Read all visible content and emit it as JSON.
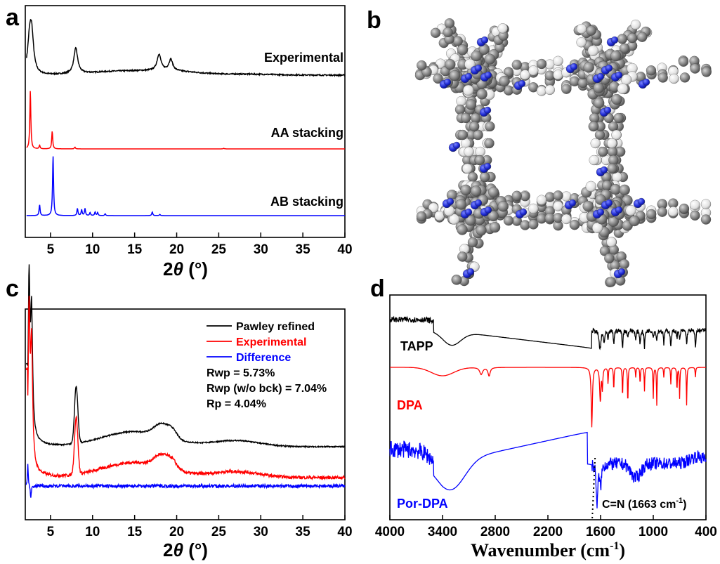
{
  "panels": {
    "a": {
      "label": "a"
    },
    "b": {
      "label": "b"
    },
    "c": {
      "label": "c"
    },
    "d": {
      "label": "d"
    }
  },
  "colors": {
    "black": "#000000",
    "red": "#ff0000",
    "blue": "#0000ff",
    "carbon": "#7a7a7a",
    "hydrogen": "#e6e6e6",
    "nitrogen": "#1f2bd6"
  },
  "chart_data": [
    {
      "panel": "a",
      "type": "line",
      "xlabel_prefix": "2",
      "xlabel_symbol": "θ",
      "xlabel_suffix": " (°)",
      "xlim": [
        2,
        40
      ],
      "xticks": [
        5,
        10,
        15,
        20,
        25,
        30,
        35,
        40
      ],
      "series": [
        {
          "name": "Experimental",
          "color": "#000000",
          "peaks": [
            [
              2.5,
              0.55
            ],
            [
              2.75,
              0.75
            ],
            [
              8.0,
              0.5
            ],
            [
              17.9,
              0.32
            ],
            [
              19.3,
              0.22
            ]
          ]
        },
        {
          "name": "AA stacking",
          "color": "#ff0000",
          "peaks": [
            [
              2.6,
              1.0
            ],
            [
              3.7,
              0.06
            ],
            [
              5.2,
              0.3
            ],
            [
              7.9,
              0.03
            ],
            [
              25.6,
              0.01
            ]
          ]
        },
        {
          "name": "AB stacking",
          "color": "#0000ff",
          "peaks": [
            [
              3.7,
              0.18
            ],
            [
              5.3,
              1.0
            ],
            [
              8.2,
              0.12
            ],
            [
              8.7,
              0.1
            ],
            [
              9.1,
              0.12
            ],
            [
              9.7,
              0.05
            ],
            [
              10.3,
              0.06
            ],
            [
              10.6,
              0.05
            ],
            [
              11.5,
              0.03
            ],
            [
              17.1,
              0.06
            ],
            [
              18.0,
              0.02
            ]
          ]
        }
      ]
    },
    {
      "panel": "c",
      "type": "line",
      "xlabel_prefix": "2",
      "xlabel_symbol": "θ",
      "xlabel_suffix": " (°)",
      "xlim": [
        2,
        40
      ],
      "xticks": [
        5,
        10,
        15,
        20,
        25,
        30,
        35,
        40
      ],
      "legend": [
        "Pawley refined",
        "Experimental",
        "Difference"
      ],
      "stats": [
        "Rwp = 5.73%",
        "Rwp (w/o bck) = 7.04%",
        "Rp = 4.04%"
      ],
      "series": [
        {
          "name": "Pawley refined",
          "color": "#000000"
        },
        {
          "name": "Experimental",
          "color": "#ff0000"
        },
        {
          "name": "Difference",
          "color": "#0000ff"
        }
      ]
    },
    {
      "panel": "d",
      "type": "line",
      "xlabel": "Wavenumber (cm",
      "xlabel_sup": "-1",
      "xlabel_end": ")",
      "xlim": [
        4000,
        400
      ],
      "xticks": [
        4000,
        3400,
        2800,
        2200,
        1600,
        1000,
        400
      ],
      "annotation_text": "C=N (1663 cm",
      "annotation_sup": "-1",
      "annotation_end": ")",
      "annotation_x": 1663,
      "series": [
        {
          "name": "TAPP",
          "color": "#000000"
        },
        {
          "name": "DPA",
          "color": "#ff0000"
        },
        {
          "name": "Por-DPA",
          "color": "#0000ff"
        }
      ]
    }
  ]
}
